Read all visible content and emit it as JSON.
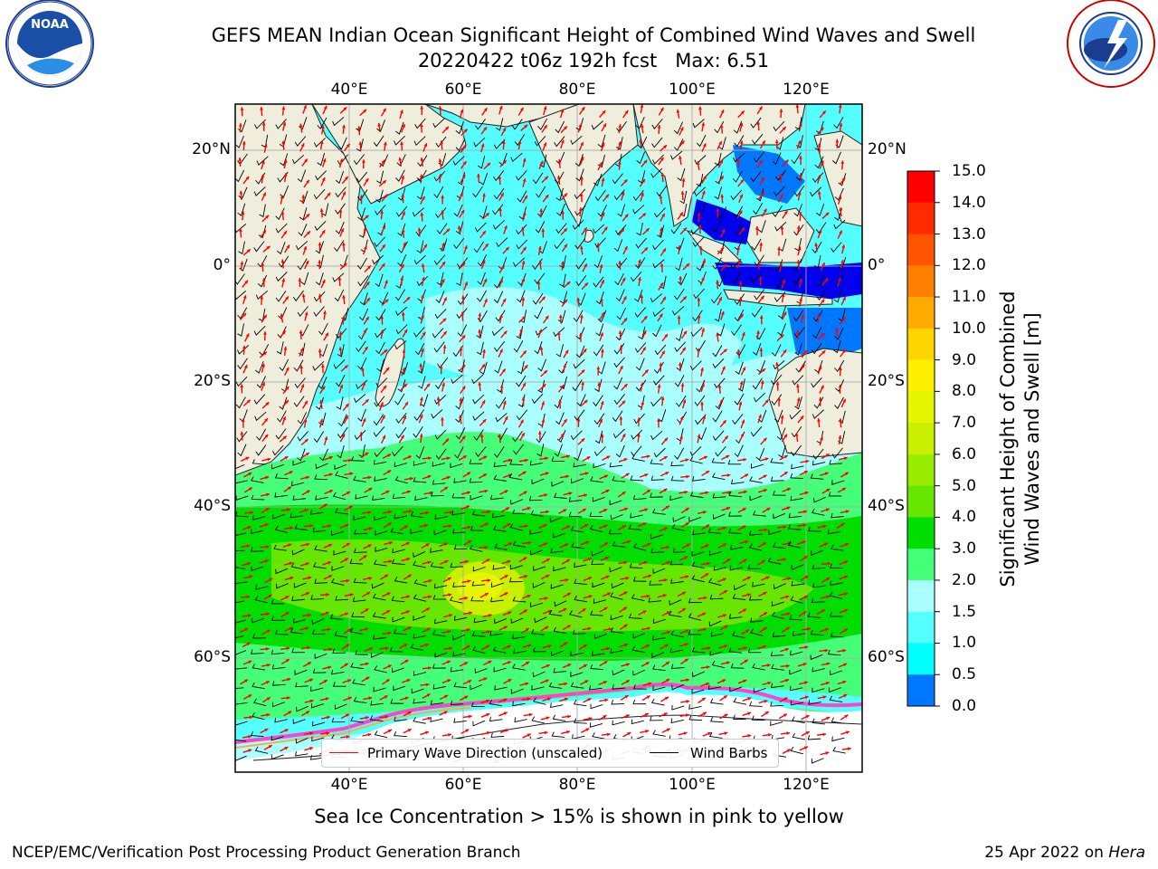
{
  "title": {
    "line1": "GEFS MEAN Indian Ocean Significant Height of Combined Wind Waves and Swell",
    "line2": "20220422 t06z 192h fcst   Max: 6.51"
  },
  "map": {
    "lon_ticks": [
      "40°E",
      "60°E",
      "80°E",
      "100°E",
      "120°E"
    ],
    "lat_ticks": [
      "20°N",
      "0°",
      "20°S",
      "40°S",
      "60°S"
    ],
    "lat_ticks_right": [
      "20°N",
      "0°",
      "20°S",
      "40°S",
      "60°S"
    ],
    "land_color": "#efeedd",
    "ice_color": "#ffffff"
  },
  "legend": {
    "wave_direction": "Primary Wave Direction (unscaled)",
    "wind_barbs": "Wind Barbs",
    "wave_color": "#ff0000",
    "barb_color": "#000000"
  },
  "colorbar": {
    "title_line1": "Significant Height of Combined",
    "title_line2": "Wind Waves and Swell [m]",
    "labels": [
      "15.0",
      "14.0",
      "13.0",
      "12.0",
      "11.0",
      "10.0",
      "9.0",
      "8.0",
      "7.0",
      "6.0",
      "5.0",
      "4.0",
      "3.0",
      "2.0",
      "1.5",
      "1.0",
      "0.5",
      "0.0"
    ],
    "colors": [
      "#ff0000",
      "#ff2a00",
      "#ff5500",
      "#ff8000",
      "#ffaa00",
      "#ffd500",
      "#fff000",
      "#e6f500",
      "#c8f000",
      "#99ee00",
      "#66e600",
      "#00dd00",
      "#44ff77",
      "#aaffff",
      "#55ffff",
      "#00ffff",
      "#0077ff",
      "#0000ff"
    ]
  },
  "footnote": "Sea Ice Concentration > 15% is shown in pink to yellow",
  "footer": {
    "left": "NCEP/EMC/Verification Post Processing Product Generation Branch",
    "right_prefix": "25 Apr 2022 on ",
    "right_host": "Hera"
  },
  "logos": {
    "noaa_text": "NOAA",
    "noaa_ring": "NATIONAL OCEANIC AND ATMOSPHERIC ADMINISTRATION · U.S. DEPARTMENT OF COMMERCE",
    "nws_ring": "NATIONAL WEATHER SERVICE"
  }
}
